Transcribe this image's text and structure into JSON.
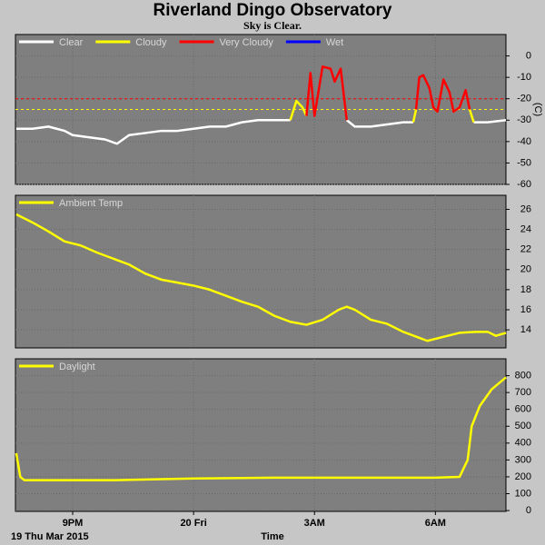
{
  "title": "Riverland Dingo Observatory",
  "subtitle": "Sky is Clear.",
  "chart_data": [
    {
      "type": "line",
      "y_label": "(C)",
      "x": [
        19.6,
        20.0,
        20.4,
        20.8,
        21.0,
        21.4,
        21.8,
        22.1,
        22.4,
        22.8,
        23.2,
        23.6,
        24.0,
        24.4,
        24.8,
        25.2,
        25.6,
        26.0,
        26.4,
        26.55,
        26.7,
        26.8,
        26.9,
        27.0,
        27.2,
        27.4,
        27.5,
        27.65,
        27.8,
        28.0,
        28.4,
        28.8,
        29.2,
        29.45,
        29.52,
        29.6,
        29.7,
        29.85,
        29.95,
        30.05,
        30.2,
        30.35,
        30.45,
        30.6,
        30.75,
        30.85,
        30.95,
        31.3,
        31.75
      ],
      "series": [
        {
          "name": "Clear",
          "color": "#ffffff",
          "values": [
            -34,
            -34,
            -33,
            -35,
            -37,
            -38,
            -39,
            -41,
            -37,
            -36,
            -35,
            -35,
            -34,
            -33,
            -33,
            -31,
            -30,
            -30,
            -30,
            null,
            null,
            null,
            null,
            null,
            null,
            null,
            null,
            null,
            -30,
            -33,
            -33,
            -32,
            -31,
            -31,
            null,
            null,
            null,
            null,
            null,
            null,
            null,
            null,
            null,
            null,
            null,
            null,
            -31,
            -31,
            -30
          ]
        },
        {
          "name": "Cloudy",
          "color": "#ffff00",
          "values": [
            null,
            null,
            null,
            null,
            null,
            null,
            null,
            null,
            null,
            null,
            null,
            null,
            null,
            null,
            null,
            null,
            null,
            null,
            -30,
            -21,
            -24,
            -28,
            null,
            null,
            null,
            null,
            null,
            null,
            null,
            null,
            null,
            null,
            null,
            -31,
            -25,
            null,
            null,
            null,
            -24,
            -26,
            null,
            null,
            -26,
            -24,
            null,
            -25,
            -31,
            null,
            null
          ]
        },
        {
          "name": "Very Cloudy",
          "color": "#ff0000",
          "values": [
            null,
            null,
            null,
            null,
            null,
            null,
            null,
            null,
            null,
            null,
            null,
            null,
            null,
            null,
            null,
            null,
            null,
            null,
            null,
            null,
            null,
            -28,
            -8,
            -28,
            -5,
            -6,
            -12,
            -6,
            -30,
            null,
            null,
            null,
            null,
            null,
            -25,
            -10,
            -9,
            -15,
            -24,
            -26,
            -11,
            -17,
            -26,
            -24,
            -16,
            -25,
            null,
            null,
            null
          ]
        },
        {
          "name": "Wet",
          "color": "#0000ff",
          "values": [
            null,
            null,
            null,
            null,
            null,
            null,
            null,
            null,
            null,
            null,
            null,
            null,
            null,
            null,
            null,
            null,
            null,
            null,
            null,
            null,
            null,
            null,
            null,
            null,
            null,
            null,
            null,
            null,
            null,
            null,
            null,
            null,
            null,
            null,
            null,
            null,
            null,
            null,
            null,
            null,
            null,
            null,
            null,
            null,
            null,
            null,
            null,
            null,
            null
          ]
        }
      ],
      "thresholds": [
        {
          "value": -20,
          "color": "#ff0000"
        },
        {
          "value": -25,
          "color": "#ffff00"
        }
      ],
      "xlim": [
        19.58,
        31.75
      ],
      "ylim": [
        -60,
        10
      ],
      "yticks": [
        0,
        -10,
        -20,
        -30,
        -40,
        -50,
        -60
      ]
    },
    {
      "type": "line",
      "x": [
        19.6,
        20.0,
        20.4,
        20.8,
        21.2,
        21.6,
        22.0,
        22.4,
        22.8,
        23.2,
        23.6,
        24.0,
        24.4,
        24.8,
        25.2,
        25.6,
        26.0,
        26.4,
        26.8,
        27.2,
        27.6,
        27.8,
        28.0,
        28.4,
        28.8,
        29.2,
        29.6,
        29.8,
        30.2,
        30.6,
        31.0,
        31.3,
        31.5,
        31.75
      ],
      "series": [
        {
          "name": "Ambient Temp",
          "color": "#ffff00",
          "values": [
            25.5,
            24.7,
            23.8,
            22.8,
            22.4,
            21.7,
            21.1,
            20.5,
            19.6,
            19.0,
            18.7,
            18.4,
            18.0,
            17.4,
            16.8,
            16.3,
            15.4,
            14.8,
            14.5,
            15.0,
            16.0,
            16.3,
            16.0,
            15.0,
            14.6,
            13.8,
            13.2,
            12.9,
            13.3,
            13.7,
            13.8,
            13.8,
            13.4,
            13.7
          ]
        }
      ],
      "xlim": [
        19.58,
        31.75
      ],
      "ylim": [
        12.2,
        27.4
      ],
      "yticks": [
        14,
        16,
        18,
        20,
        22,
        24,
        26
      ]
    },
    {
      "type": "line",
      "x_label": "Time",
      "date_label": "19 Thu Mar 2015",
      "x": [
        19.6,
        19.7,
        19.8,
        20.5,
        22.0,
        24.0,
        26.0,
        28.0,
        30.0,
        30.6,
        30.8,
        30.9,
        31.1,
        31.4,
        31.75
      ],
      "series": [
        {
          "name": "Daylight",
          "color": "#ffff00",
          "values": [
            340,
            200,
            180,
            180,
            180,
            190,
            195,
            195,
            195,
            200,
            300,
            500,
            620,
            720,
            790
          ]
        }
      ],
      "xlim": [
        19.58,
        31.75
      ],
      "ylim": [
        -5,
        900
      ],
      "yticks": [
        0,
        100,
        200,
        300,
        400,
        500,
        600,
        700,
        800
      ],
      "xticks": [
        {
          "value": 21,
          "label": "9PM"
        },
        {
          "value": 24,
          "label": "20 Fri"
        },
        {
          "value": 27,
          "label": "3AM"
        },
        {
          "value": 30,
          "label": "6AM"
        }
      ]
    }
  ]
}
